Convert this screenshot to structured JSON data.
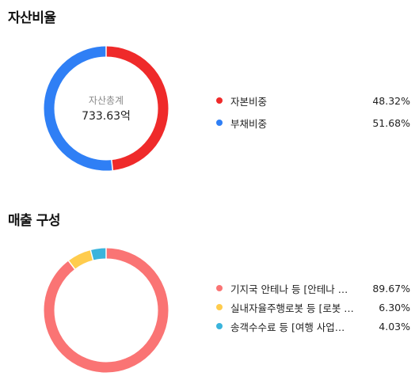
{
  "sections": [
    {
      "title": "자산비율",
      "center_caption": "자산총계",
      "center_value": "733.63억"
    },
    {
      "title": "매출 구성"
    }
  ],
  "chart_data": [
    {
      "type": "pie",
      "title": "자산비율",
      "center_caption": "자산총계",
      "center_value": "733.63억",
      "series": [
        {
          "name": "자본비중",
          "value": 48.32,
          "value_label": "48.32%",
          "color": "#ef2a2a"
        },
        {
          "name": "부채비중",
          "value": 51.68,
          "value_label": "51.68%",
          "color": "#2f7ff5"
        }
      ],
      "legend_placement": "right"
    },
    {
      "type": "pie",
      "title": "매출 구성",
      "series": [
        {
          "name": "기지국 안테나 등 [안테나 …",
          "value": 89.67,
          "value_label": "89.67%",
          "color": "#fa7474"
        },
        {
          "name": "실내자율주행로봇 등 [로봇 …",
          "value": 6.3,
          "value_label": "6.30%",
          "color": "#ffcc4d"
        },
        {
          "name": "송객수수료 등 [여행 사업…",
          "value": 4.03,
          "value_label": "4.03%",
          "color": "#3ab4dc"
        }
      ],
      "legend_placement": "right"
    }
  ]
}
